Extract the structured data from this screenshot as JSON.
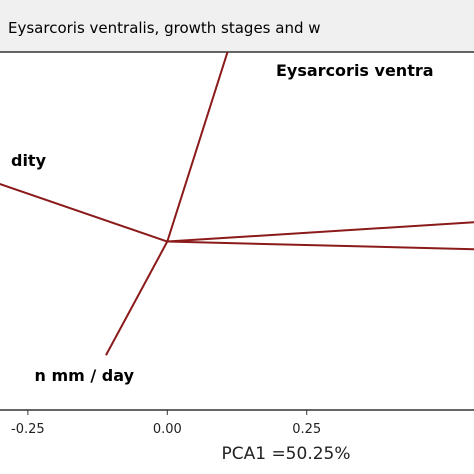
{
  "chart_data": {
    "type": "biplot",
    "title": "Eysarcoris ventralis,  growth stages and w",
    "xlabel": "PCA1 =50.25%",
    "xlim": [
      -0.3,
      0.55
    ],
    "ylim": [
      -0.4,
      0.45
    ],
    "xticks": [
      {
        "value": -0.25,
        "label": "-0.25"
      },
      {
        "value": 0.0,
        "label": "0.00"
      },
      {
        "value": 0.25,
        "label": "0.25"
      }
    ],
    "vectors": [
      {
        "label": "Eysarcoris ventra",
        "x": 0.12,
        "y": 0.5
      },
      {
        "label": "dity",
        "x": -0.33,
        "y": 0.15
      },
      {
        "label": "n mm / day",
        "x": -0.11,
        "y": -0.27
      },
      {
        "label": "",
        "x": 0.6,
        "y": 0.05
      },
      {
        "label": "",
        "x": 0.6,
        "y": -0.02
      }
    ],
    "colors": {
      "vector": "#8b1a1a",
      "frame": "#333333",
      "title_bar": "#f0f0f0"
    }
  }
}
